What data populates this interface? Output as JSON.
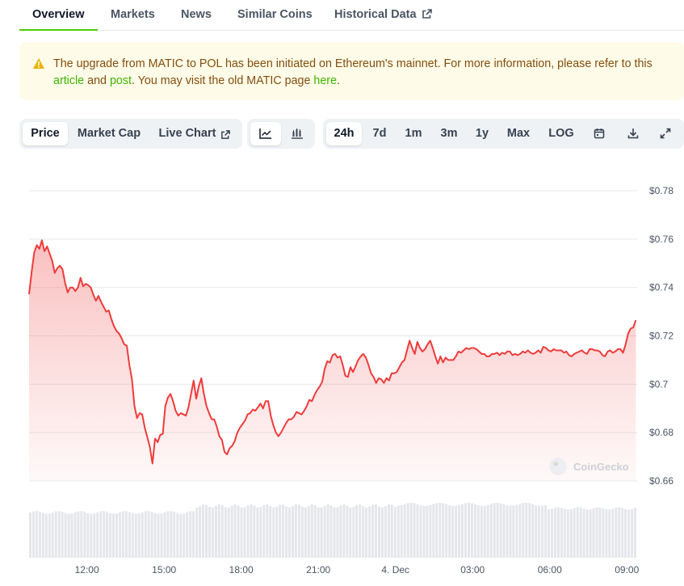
{
  "tabs": [
    {
      "label": "Overview",
      "active": true
    },
    {
      "label": "Markets"
    },
    {
      "label": "News"
    },
    {
      "label": "Similar Coins"
    },
    {
      "label": "Historical Data",
      "icon": "external-link-icon"
    }
  ],
  "alert": {
    "icon": "warning-icon",
    "part1": "The upgrade from MATIC to POL has been initiated on Ethereum's mainnet. For more information, please refer to this ",
    "link1": "article",
    "part2": " and ",
    "link2": "post",
    "part3": ". You may visit the old MATIC page ",
    "link3": "here",
    "part4": "."
  },
  "toolbar": {
    "metric_tabs": [
      "Price",
      "Market Cap",
      "Live Chart"
    ],
    "chart_type_icons": [
      "line-chart-icon",
      "candlestick-icon"
    ],
    "ranges": [
      "24h",
      "7d",
      "1m",
      "3m",
      "1y",
      "Max",
      "LOG"
    ],
    "active_range": "24h",
    "action_icons": [
      "calendar-icon",
      "download-icon",
      "expand-icon"
    ]
  },
  "watermark": "CoinGecko",
  "colors": {
    "line": "#ef3b3b",
    "accent": "#4bcc00",
    "alert_bg": "#fefce8",
    "alert_text": "#854d0e",
    "link": "#3eb300"
  },
  "chart_data": {
    "type": "area",
    "title": "",
    "xlabel": "",
    "ylabel": "",
    "y_ticks": [
      "$0.78",
      "$0.76",
      "$0.74",
      "$0.72",
      "$0.7",
      "$0.68",
      "$0.66"
    ],
    "x_ticks": [
      "12:00",
      "15:00",
      "18:00",
      "21:00",
      "4. Dec",
      "03:00",
      "06:00",
      "09:00"
    ],
    "ylim": [
      0.66,
      0.78
    ],
    "x_range_hours": [
      9.75,
      33.4
    ],
    "grid": true,
    "series": [
      {
        "values": [
          [
            9.75,
            0.7372
          ],
          [
            9.85,
            0.7465
          ],
          [
            9.95,
            0.7545
          ],
          [
            10.05,
            0.7575
          ],
          [
            10.15,
            0.756
          ],
          [
            10.25,
            0.7595
          ],
          [
            10.35,
            0.755
          ],
          [
            10.45,
            0.757
          ],
          [
            10.55,
            0.754
          ],
          [
            10.65,
            0.751
          ],
          [
            10.75,
            0.746
          ],
          [
            10.85,
            0.748
          ],
          [
            10.95,
            0.749
          ],
          [
            11.05,
            0.7475
          ],
          [
            11.15,
            0.742
          ],
          [
            11.25,
            0.738
          ],
          [
            11.35,
            0.74
          ],
          [
            11.45,
            0.74
          ],
          [
            11.55,
            0.7385
          ],
          [
            11.65,
            0.74
          ],
          [
            11.75,
            0.744
          ],
          [
            11.85,
            0.7405
          ],
          [
            11.95,
            0.7415
          ],
          [
            12.05,
            0.741
          ],
          [
            12.15,
            0.74
          ],
          [
            12.25,
            0.737
          ],
          [
            12.35,
            0.7345
          ],
          [
            12.45,
            0.7365
          ],
          [
            12.55,
            0.734
          ],
          [
            12.65,
            0.732
          ],
          [
            12.75,
            0.73
          ],
          [
            12.85,
            0.7305
          ],
          [
            12.95,
            0.727
          ],
          [
            13.05,
            0.724
          ],
          [
            13.15,
            0.722
          ],
          [
            13.25,
            0.721
          ],
          [
            13.35,
            0.719
          ],
          [
            13.45,
            0.7165
          ],
          [
            13.55,
            0.716
          ],
          [
            13.65,
            0.708
          ],
          [
            13.75,
            0.702
          ],
          [
            13.85,
            0.691
          ],
          [
            13.95,
            0.686
          ],
          [
            14.05,
            0.688
          ],
          [
            14.15,
            0.6875
          ],
          [
            14.25,
            0.682
          ],
          [
            14.35,
            0.678
          ],
          [
            14.45,
            0.674
          ],
          [
            14.55,
            0.6672
          ],
          [
            14.65,
            0.6775
          ],
          [
            14.75,
            0.676
          ],
          [
            14.85,
            0.679
          ],
          [
            14.95,
            0.6795
          ],
          [
            15.05,
            0.691
          ],
          [
            15.15,
            0.6945
          ],
          [
            15.25,
            0.696
          ],
          [
            15.35,
            0.693
          ],
          [
            15.45,
            0.689
          ],
          [
            15.55,
            0.687
          ],
          [
            15.65,
            0.688
          ],
          [
            15.75,
            0.6875
          ],
          [
            15.85,
            0.687
          ],
          [
            15.95,
            0.6905
          ],
          [
            16.05,
            0.696
          ],
          [
            16.15,
            0.7015
          ],
          [
            16.25,
            0.694
          ],
          [
            16.35,
            0.699
          ],
          [
            16.45,
            0.7025
          ],
          [
            16.55,
            0.696
          ],
          [
            16.65,
            0.691
          ],
          [
            16.75,
            0.688
          ],
          [
            16.85,
            0.6855
          ],
          [
            16.95,
            0.6855
          ],
          [
            17.05,
            0.6825
          ],
          [
            17.15,
            0.6785
          ],
          [
            17.25,
            0.677
          ],
          [
            17.35,
            0.672
          ],
          [
            17.45,
            0.671
          ],
          [
            17.55,
            0.6735
          ],
          [
            17.65,
            0.6745
          ],
          [
            17.75,
            0.6765
          ],
          [
            17.85,
            0.68
          ],
          [
            17.95,
            0.682
          ],
          [
            18.05,
            0.6835
          ],
          [
            18.15,
            0.685
          ],
          [
            18.25,
            0.6875
          ],
          [
            18.35,
            0.688
          ],
          [
            18.45,
            0.6895
          ],
          [
            18.55,
            0.689
          ],
          [
            18.65,
            0.6905
          ],
          [
            18.75,
            0.692
          ],
          [
            18.85,
            0.69
          ],
          [
            18.95,
            0.693
          ],
          [
            19.05,
            0.693
          ],
          [
            19.15,
            0.687
          ],
          [
            19.25,
            0.683
          ],
          [
            19.35,
            0.68
          ],
          [
            19.45,
            0.6785
          ],
          [
            19.55,
            0.68
          ],
          [
            19.65,
            0.682
          ],
          [
            19.75,
            0.684
          ],
          [
            19.85,
            0.6855
          ],
          [
            19.95,
            0.6855
          ],
          [
            20.05,
            0.6865
          ],
          [
            20.15,
            0.6885
          ],
          [
            20.25,
            0.688
          ],
          [
            20.35,
            0.6875
          ],
          [
            20.45,
            0.689
          ],
          [
            20.55,
            0.691
          ],
          [
            20.65,
            0.6935
          ],
          [
            20.75,
            0.693
          ],
          [
            20.85,
            0.6955
          ],
          [
            20.95,
            0.6975
          ],
          [
            21.05,
            0.699
          ],
          [
            21.15,
            0.701
          ],
          [
            21.25,
            0.7065
          ],
          [
            21.35,
            0.7095
          ],
          [
            21.45,
            0.709
          ],
          [
            21.55,
            0.712
          ],
          [
            21.65,
            0.7125
          ],
          [
            21.75,
            0.711
          ],
          [
            21.85,
            0.7115
          ],
          [
            21.95,
            0.708
          ],
          [
            22.05,
            0.7035
          ],
          [
            22.15,
            0.703
          ],
          [
            22.25,
            0.707
          ],
          [
            22.35,
            0.705
          ],
          [
            22.45,
            0.7075
          ],
          [
            22.55,
            0.71
          ],
          [
            22.65,
            0.7115
          ],
          [
            22.75,
            0.7125
          ],
          [
            22.85,
            0.711
          ],
          [
            22.95,
            0.708
          ],
          [
            23.05,
            0.7045
          ],
          [
            23.15,
            0.703
          ],
          [
            23.25,
            0.7005
          ],
          [
            23.35,
            0.7025
          ],
          [
            23.45,
            0.702
          ],
          [
            23.55,
            0.7005
          ],
          [
            23.65,
            0.7025
          ],
          [
            23.75,
            0.7015
          ],
          [
            23.85,
            0.7045
          ],
          [
            23.95,
            0.7045
          ],
          [
            24.05,
            0.705
          ],
          [
            24.15,
            0.707
          ],
          [
            24.25,
            0.709
          ],
          [
            24.35,
            0.71
          ],
          [
            24.45,
            0.714
          ],
          [
            24.55,
            0.718
          ],
          [
            24.65,
            0.715
          ],
          [
            24.75,
            0.7125
          ],
          [
            24.85,
            0.7175
          ],
          [
            24.95,
            0.715
          ],
          [
            25.05,
            0.7135
          ],
          [
            25.15,
            0.7145
          ],
          [
            25.25,
            0.7165
          ],
          [
            25.35,
            0.718
          ],
          [
            25.45,
            0.715
          ],
          [
            25.55,
            0.7115
          ],
          [
            25.65,
            0.7085
          ],
          [
            25.75,
            0.7115
          ],
          [
            25.85,
            0.709
          ],
          [
            25.95,
            0.711
          ],
          [
            26.05,
            0.71
          ],
          [
            26.15,
            0.71
          ],
          [
            26.25,
            0.71
          ],
          [
            26.35,
            0.7115
          ],
          [
            26.45,
            0.7135
          ],
          [
            26.55,
            0.713
          ],
          [
            26.65,
            0.714
          ],
          [
            26.75,
            0.715
          ],
          [
            26.85,
            0.7145
          ],
          [
            26.95,
            0.715
          ],
          [
            27.05,
            0.715
          ],
          [
            27.15,
            0.7145
          ],
          [
            27.25,
            0.7135
          ],
          [
            27.35,
            0.7125
          ],
          [
            27.45,
            0.7125
          ],
          [
            27.55,
            0.7115
          ],
          [
            27.65,
            0.7115
          ],
          [
            27.75,
            0.7125
          ],
          [
            27.85,
            0.7125
          ],
          [
            27.95,
            0.713
          ],
          [
            28.05,
            0.712
          ],
          [
            28.15,
            0.713
          ],
          [
            28.25,
            0.7125
          ],
          [
            28.35,
            0.7135
          ],
          [
            28.45,
            0.7135
          ],
          [
            28.55,
            0.712
          ],
          [
            28.65,
            0.7125
          ],
          [
            28.75,
            0.712
          ],
          [
            28.85,
            0.7125
          ],
          [
            28.95,
            0.7135
          ],
          [
            29.05,
            0.713
          ],
          [
            29.15,
            0.714
          ],
          [
            29.25,
            0.713
          ],
          [
            29.35,
            0.7125
          ],
          [
            29.45,
            0.713
          ],
          [
            29.55,
            0.714
          ],
          [
            29.65,
            0.713
          ],
          [
            29.75,
            0.7155
          ],
          [
            29.85,
            0.715
          ],
          [
            29.95,
            0.714
          ],
          [
            30.05,
            0.7135
          ],
          [
            30.15,
            0.7145
          ],
          [
            30.25,
            0.714
          ],
          [
            30.35,
            0.714
          ],
          [
            30.45,
            0.714
          ],
          [
            30.55,
            0.713
          ],
          [
            30.65,
            0.7135
          ],
          [
            30.75,
            0.712
          ],
          [
            30.85,
            0.7115
          ],
          [
            30.95,
            0.7125
          ],
          [
            31.05,
            0.713
          ],
          [
            31.15,
            0.7135
          ],
          [
            31.25,
            0.714
          ],
          [
            31.35,
            0.713
          ],
          [
            31.45,
            0.7125
          ],
          [
            31.55,
            0.7145
          ],
          [
            31.65,
            0.7145
          ],
          [
            31.75,
            0.714
          ],
          [
            31.85,
            0.714
          ],
          [
            31.95,
            0.7135
          ],
          [
            32.05,
            0.712
          ],
          [
            32.15,
            0.7115
          ],
          [
            32.25,
            0.7135
          ],
          [
            32.35,
            0.714
          ],
          [
            32.45,
            0.713
          ],
          [
            32.55,
            0.7135
          ],
          [
            32.65,
            0.7145
          ],
          [
            32.75,
            0.7145
          ],
          [
            32.85,
            0.713
          ],
          [
            32.95,
            0.7165
          ],
          [
            33.05,
            0.721
          ],
          [
            33.15,
            0.723
          ],
          [
            33.25,
            0.7235
          ],
          [
            33.35,
            0.7265
          ]
        ]
      }
    ]
  }
}
